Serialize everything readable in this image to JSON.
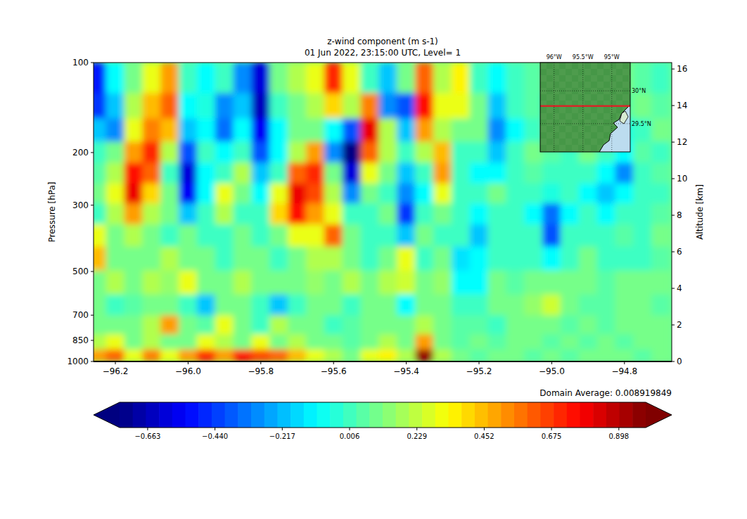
{
  "chart_data": {
    "type": "heatmap",
    "title": "z-wind component (m s-1)",
    "subtitle": "01 Jun 2022, 23:15:00 UTC, Level= 1",
    "y_label": "Pressure [hPa]",
    "y2_label": "Altitude [km]",
    "annotation": "Domain Average: 0.008919849",
    "xlim": [
      -96.26,
      -94.67
    ],
    "xticks": [
      {
        "value": -96.2,
        "label": "−96.2"
      },
      {
        "value": -96.0,
        "label": "−96.0"
      },
      {
        "value": -95.8,
        "label": "−95.8"
      },
      {
        "value": -95.6,
        "label": "−95.6"
      },
      {
        "value": -95.4,
        "label": "−95.4"
      },
      {
        "value": -95.2,
        "label": "−95.2"
      },
      {
        "value": -95.0,
        "label": "−95.0"
      },
      {
        "value": -94.8,
        "label": "−94.8"
      }
    ],
    "log": "y",
    "ylim": [
      1000,
      100
    ],
    "yticks": [
      100,
      200,
      300,
      500,
      700,
      850,
      1000
    ],
    "y2lim": [
      0,
      16.35
    ],
    "y2ticks": [
      0,
      2,
      4,
      6,
      8,
      10,
      12,
      14,
      16
    ],
    "x": [
      -96.25,
      -96.2,
      -96.15,
      -96.1,
      -96.05,
      -96.0,
      -95.95,
      -95.9,
      -95.85,
      -95.8,
      -95.75,
      -95.7,
      -95.65,
      -95.6,
      -95.55,
      -95.5,
      -95.45,
      -95.4,
      -95.35,
      -95.3,
      -95.25,
      -95.2,
      -95.15,
      -95.1,
      -95.05,
      -95.0,
      -94.95,
      -94.9,
      -94.85,
      -94.8,
      -94.75,
      -94.7
    ],
    "y": [
      115,
      140,
      170,
      200,
      235,
      275,
      320,
      380,
      450,
      550,
      650,
      760,
      870,
      960
    ],
    "cells": [
      [
        -0.5,
        -0.1,
        0.1,
        0.3,
        0.5,
        0.0,
        -0.1,
        0.0,
        -0.3,
        -0.6,
        0.1,
        0.2,
        0.3,
        0.7,
        0.3,
        0.0,
        -0.2,
        0.1,
        0.6,
        0.2,
        0.35,
        0.0,
        -0.1,
        0.0,
        0.05,
        0.1,
        -0.1,
        0.05,
        0.0,
        0.1,
        0.05,
        0.0
      ],
      [
        -0.45,
        -0.2,
        0.2,
        0.45,
        0.6,
        -0.1,
        -0.05,
        -0.3,
        -0.2,
        -0.65,
        0.0,
        0.1,
        0.2,
        0.4,
        0.2,
        0.55,
        -0.3,
        -0.4,
        0.75,
        0.3,
        0.3,
        0.1,
        -0.2,
        0.0,
        0.05,
        0.0,
        -0.1,
        0.1,
        0.0,
        0.05,
        0.1,
        0.05
      ],
      [
        -0.2,
        -0.3,
        0.3,
        0.55,
        0.45,
        -0.2,
        -0.1,
        -0.35,
        -0.1,
        -0.55,
        -0.1,
        0.1,
        0.1,
        -0.1,
        -0.4,
        0.8,
        0.2,
        -0.2,
        0.5,
        0.2,
        0.1,
        0.1,
        -0.3,
        -0.1,
        0.0,
        0.1,
        0.0,
        0.0,
        0.05,
        -0.05,
        0.0,
        0.1
      ],
      [
        0.0,
        0.1,
        0.5,
        0.7,
        0.2,
        -0.4,
        0.0,
        -0.1,
        0.0,
        -0.4,
        -0.1,
        0.2,
        0.5,
        -0.3,
        -0.75,
        0.6,
        0.2,
        0.0,
        0.2,
        0.45,
        0.0,
        0.0,
        -0.2,
        0.0,
        0.1,
        0.05,
        0.0,
        0.1,
        0.0,
        -0.1,
        0.05,
        0.0
      ],
      [
        0.05,
        0.2,
        0.75,
        0.6,
        0.0,
        -0.6,
        -0.1,
        0.0,
        0.2,
        -0.2,
        0.0,
        0.6,
        0.7,
        0.1,
        -0.6,
        0.3,
        0.1,
        -0.2,
        0.0,
        0.5,
        0.0,
        -0.1,
        -0.1,
        0.0,
        0.05,
        0.0,
        0.0,
        0.0,
        -0.1,
        -0.3,
        0.0,
        0.05
      ],
      [
        0.1,
        0.3,
        0.8,
        0.4,
        0.1,
        -0.55,
        -0.1,
        0.3,
        0.1,
        -0.1,
        0.3,
        0.8,
        0.65,
        0.2,
        -0.3,
        0.1,
        0.0,
        -0.3,
        -0.1,
        0.3,
        0.0,
        0.0,
        0.1,
        0.0,
        0.0,
        -0.05,
        0.0,
        -0.1,
        -0.2,
        -0.1,
        0.0,
        0.0
      ],
      [
        0.0,
        0.2,
        0.5,
        0.2,
        0.1,
        -0.2,
        0.0,
        0.2,
        0.0,
        0.0,
        0.4,
        0.75,
        0.5,
        0.3,
        0.0,
        0.0,
        0.1,
        -0.45,
        0.0,
        0.1,
        0.0,
        -0.1,
        0.0,
        0.0,
        -0.1,
        -0.35,
        -0.1,
        0.0,
        -0.1,
        0.0,
        0.0,
        0.05
      ],
      [
        0.3,
        0.1,
        0.2,
        0.1,
        0.0,
        0.1,
        0.0,
        0.0,
        0.1,
        0.0,
        0.1,
        0.3,
        0.3,
        0.6,
        0.1,
        0.0,
        0.0,
        -0.2,
        0.1,
        0.0,
        0.0,
        -0.2,
        0.0,
        0.0,
        0.0,
        -0.4,
        0.0,
        0.0,
        0.0,
        0.05,
        0.0,
        0.1
      ],
      [
        0.45,
        0.1,
        0.1,
        0.1,
        0.2,
        0.1,
        0.1,
        0.0,
        0.1,
        0.1,
        0.0,
        0.1,
        0.2,
        0.2,
        0.1,
        0.0,
        0.1,
        0.3,
        0.0,
        0.1,
        -0.15,
        -0.1,
        0.0,
        0.0,
        0.0,
        -0.1,
        0.0,
        0.1,
        0.0,
        0.0,
        0.0,
        0.05
      ],
      [
        0.1,
        0.2,
        0.1,
        0.2,
        0.15,
        0.3,
        0.1,
        0.1,
        0.2,
        0.1,
        0.1,
        0.1,
        0.15,
        0.1,
        0.2,
        0.1,
        0.2,
        0.25,
        0.1,
        0.15,
        -0.1,
        -0.1,
        0.1,
        0.05,
        0.1,
        0.1,
        0.1,
        0.1,
        0.05,
        0.1,
        0.1,
        0.1
      ],
      [
        0.1,
        0.0,
        0.05,
        0.1,
        0.1,
        0.0,
        -0.2,
        0.1,
        0.1,
        0.0,
        -0.2,
        0.0,
        0.1,
        0.1,
        0.0,
        0.1,
        0.1,
        -0.1,
        0.1,
        0.1,
        0.0,
        0.0,
        0.1,
        0.1,
        0.15,
        0.25,
        0.1,
        0.05,
        0.05,
        0.1,
        0.1,
        0.05
      ],
      [
        0.1,
        0.1,
        0.1,
        0.2,
        0.5,
        0.1,
        0.05,
        0.3,
        0.1,
        0.0,
        0.2,
        0.1,
        0.1,
        0.0,
        0.05,
        0.1,
        0.1,
        0.1,
        0.2,
        0.1,
        0.05,
        0.05,
        0.0,
        0.1,
        0.1,
        0.1,
        0.05,
        0.1,
        0.05,
        0.1,
        0.1,
        0.1
      ],
      [
        0.2,
        0.3,
        0.1,
        0.2,
        0.1,
        0.1,
        0.3,
        0.2,
        0.1,
        0.3,
        0.1,
        0.2,
        0.1,
        0.1,
        0.05,
        0.1,
        0.2,
        0.1,
        0.5,
        0.1,
        0.05,
        0.1,
        0.05,
        0.1,
        0.1,
        0.05,
        0.1,
        0.05,
        0.1,
        0.05,
        0.1,
        0.1
      ],
      [
        0.5,
        0.6,
        0.3,
        0.55,
        0.3,
        0.5,
        0.7,
        0.5,
        0.75,
        0.65,
        0.6,
        0.45,
        0.3,
        0.2,
        0.1,
        0.3,
        0.35,
        0.2,
        0.95,
        0.2,
        0.1,
        0.05,
        0.1,
        0.1,
        0.05,
        0.1,
        0.05,
        0.1,
        0.1,
        0.1,
        0.05,
        0.1
      ]
    ],
    "color_range": [
      -0.756,
      0.987
    ],
    "colorbar_ticks": [
      {
        "value": -0.663,
        "label": "−0.663"
      },
      {
        "value": -0.44,
        "label": "−0.440"
      },
      {
        "value": -0.217,
        "label": "−0.217"
      },
      0.006,
      0.229,
      0.452,
      0.675,
      0.898
    ],
    "inset_map": {
      "lonlim": [
        -96.24,
        -94.68
      ],
      "latlim": [
        29.07,
        30.43
      ],
      "lon_ticks": [
        {
          "value": -96.0,
          "label": "96°W"
        },
        {
          "value": -95.5,
          "label": "95.5°W"
        },
        {
          "value": -95.0,
          "label": "95°W"
        }
      ],
      "lat_ticks": [
        {
          "value": 30.0,
          "label": "30°N"
        },
        {
          "value": 29.5,
          "label": "29.5°N"
        }
      ],
      "section_lat": 29.77,
      "color": "#d62728"
    }
  }
}
